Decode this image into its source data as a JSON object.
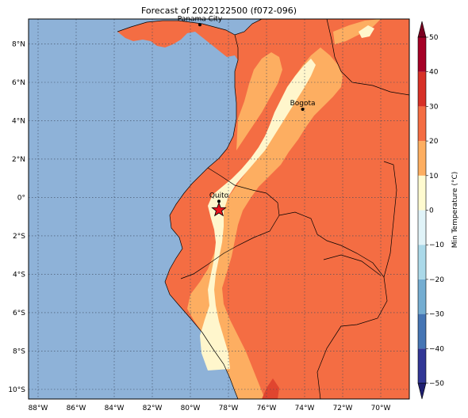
{
  "title": "Forecast of 2022122500 (f072-096)",
  "map": {
    "ocean_color": "#8eb2d8",
    "grid_style": "dotted",
    "lon_ticks": [
      {
        "value": -88,
        "label": "88°W"
      },
      {
        "value": -86,
        "label": "86°W"
      },
      {
        "value": -84,
        "label": "84°W"
      },
      {
        "value": -82,
        "label": "82°W"
      },
      {
        "value": -80,
        "label": "80°W"
      },
      {
        "value": -78,
        "label": "78°W"
      },
      {
        "value": -76,
        "label": "76°W"
      },
      {
        "value": -74,
        "label": "74°W"
      },
      {
        "value": -72,
        "label": "72°W"
      },
      {
        "value": -70,
        "label": "70°W"
      }
    ],
    "lat_ticks": [
      {
        "value": 8,
        "label": "8°N"
      },
      {
        "value": 6,
        "label": "6°N"
      },
      {
        "value": 4,
        "label": "4°N"
      },
      {
        "value": 2,
        "label": "2°N"
      },
      {
        "value": 0,
        "label": "0°"
      },
      {
        "value": -2,
        "label": "2°S"
      },
      {
        "value": -4,
        "label": "4°S"
      },
      {
        "value": -6,
        "label": "6°S"
      },
      {
        "value": -8,
        "label": "8°S"
      },
      {
        "value": -10,
        "label": "10°S"
      }
    ],
    "lon_range": [
      -88.5,
      -68.5
    ],
    "lat_range": [
      -10.5,
      9.3
    ],
    "cities": [
      {
        "name": "Panama City",
        "lon": -79.5,
        "lat": 9.0
      },
      {
        "name": "Bogota",
        "lon": -74.1,
        "lat": 4.6
      },
      {
        "name": "Quito",
        "lon": -78.5,
        "lat": -0.2
      }
    ],
    "marker": {
      "symbol": "star",
      "lon": -78.5,
      "lat": -0.65,
      "color": "#e8141c"
    }
  },
  "colorbar": {
    "label": "Min Temperature (°C)",
    "extend": "both",
    "levels": [
      -50,
      -40,
      -30,
      -20,
      -10,
      0,
      10,
      20,
      30,
      40,
      50
    ],
    "tick_labels": [
      "−50",
      "−40",
      "−30",
      "−20",
      "−10",
      "0",
      "10",
      "20",
      "30",
      "40",
      "50"
    ],
    "colors": [
      "#313695",
      "#4575b4",
      "#74add1",
      "#abd9e9",
      "#e0f3f8",
      "#fffbd0",
      "#fdae61",
      "#f46d43",
      "#d73027",
      "#a50026"
    ],
    "extend_low_color": "#1f1f70",
    "extend_high_color": "#7a0020"
  }
}
